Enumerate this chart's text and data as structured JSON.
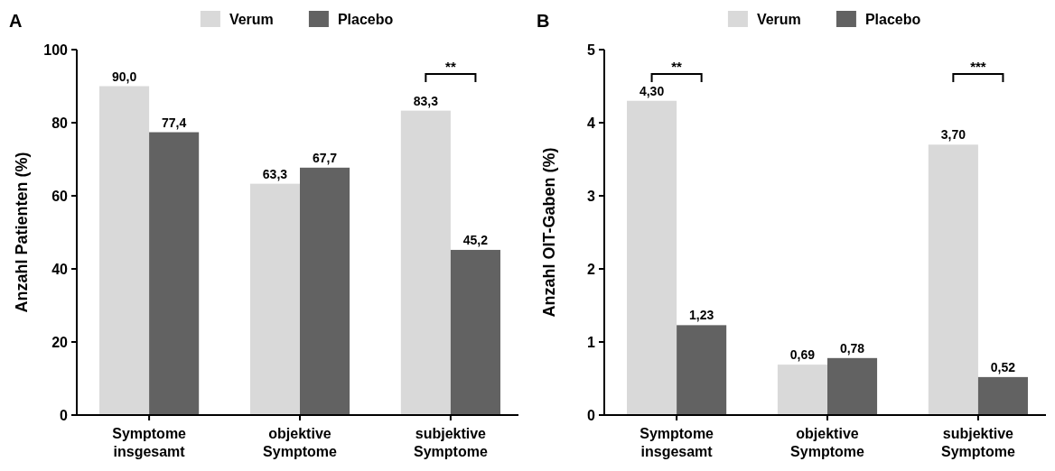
{
  "chart_data": [
    {
      "type": "bar",
      "title": "A",
      "ylabel": "Anzahl Patienten (%)",
      "categories": [
        "Symptome insgesamt",
        "objektive Symptome",
        "subjektive Symptome"
      ],
      "series": [
        {
          "name": "Verum",
          "color": "#d9d9d9",
          "values": [
            90.0,
            63.3,
            83.3
          ],
          "value_labels": [
            "90,0",
            "63,3",
            "83,3"
          ]
        },
        {
          "name": "Placebo",
          "color": "#626262",
          "values": [
            77.4,
            67.7,
            45.2
          ],
          "value_labels": [
            "77,4",
            "67,7",
            "45,2"
          ]
        }
      ],
      "ylim": [
        0,
        100
      ],
      "yticks": [
        0,
        20,
        40,
        60,
        80,
        100
      ],
      "legend": "top",
      "grid": false,
      "annotations": [
        "**"
      ]
    },
    {
      "type": "bar",
      "title": "B",
      "ylabel": "Anzahl OIT-Gaben (%)",
      "categories": [
        "Symptome insgesamt",
        "objektive Symptome",
        "subjektive Symptome"
      ],
      "series": [
        {
          "name": "Verum",
          "color": "#d9d9d9",
          "values": [
            4.3,
            0.69,
            3.7
          ],
          "value_labels": [
            "4,30",
            "0,69",
            "3,70"
          ]
        },
        {
          "name": "Placebo",
          "color": "#626262",
          "values": [
            1.23,
            0.78,
            0.52
          ],
          "value_labels": [
            "1,23",
            "0,78",
            "0,52"
          ]
        }
      ],
      "ylim": [
        0,
        5
      ],
      "yticks": [
        0,
        1,
        2,
        3,
        4,
        5
      ],
      "legend": "top",
      "grid": false,
      "annotations": [
        "**",
        "***"
      ]
    }
  ]
}
